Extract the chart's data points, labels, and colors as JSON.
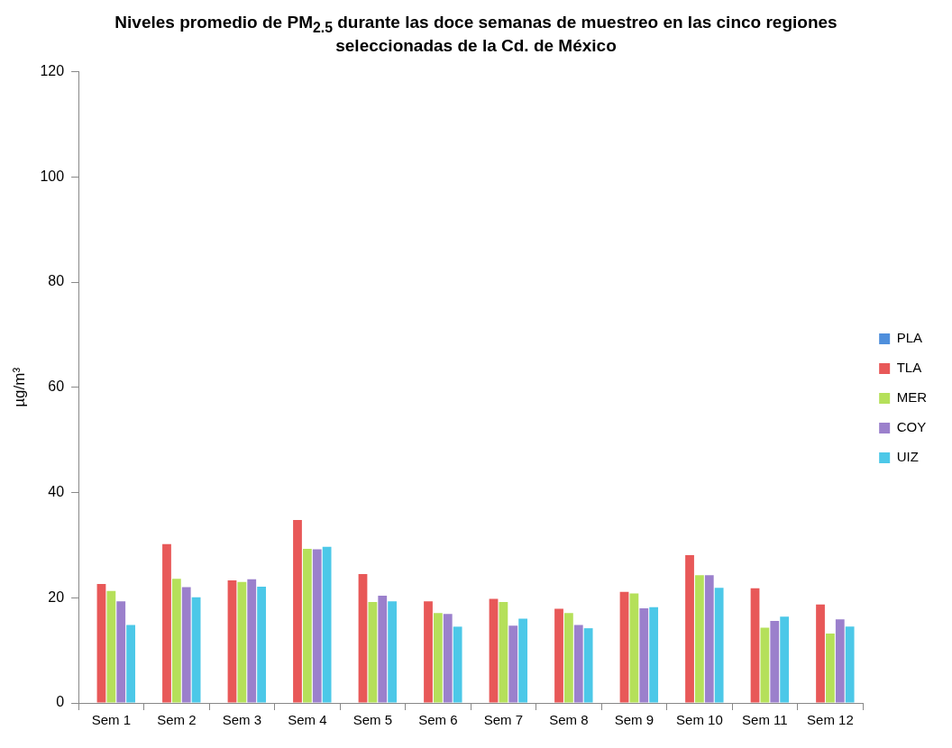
{
  "chart_data": {
    "type": "bar",
    "title": "Niveles promedio de PM$_{2.5}$ durante las doce semanas de muestreo en las cinco regiones seleccionadas de la Cd. de México",
    "ylabel": "µg/m³",
    "categories": [
      "Sem 1",
      "Sem 2",
      "Sem 3",
      "Sem 4",
      "Sem 5",
      "Sem 6",
      "Sem 7",
      "Sem 8",
      "Sem 9",
      "Sem 10",
      "Sem 11",
      "Sem 12"
    ],
    "series": [
      {
        "name": "PLA",
        "color": "#4f8fdc",
        "values": [
          null,
          null,
          null,
          null,
          null,
          null,
          null,
          null,
          null,
          null,
          null,
          null
        ]
      },
      {
        "name": "TLA",
        "color": "#e85858",
        "values": [
          22.6,
          30.2,
          23.3,
          34.8,
          24.5,
          19.3,
          19.8,
          17.9,
          21.1,
          28.1,
          21.8,
          18.7
        ]
      },
      {
        "name": "MER",
        "color": "#b5e05a",
        "values": [
          21.3,
          23.6,
          23,
          29.3,
          19.2,
          17.1,
          19.2,
          17.1,
          20.8,
          24.3,
          14.3,
          13.2
        ]
      },
      {
        "name": "COY",
        "color": "#9b80cc",
        "values": [
          19.3,
          22,
          23.5,
          29.2,
          20.4,
          16.9,
          14.7,
          14.8,
          18,
          24.3,
          15.6,
          15.9
        ]
      },
      {
        "name": "UIZ",
        "color": "#4cc8e8",
        "values": [
          14.8,
          20.1,
          22.1,
          29.7,
          19.3,
          14.5,
          16,
          14.2,
          18.2,
          21.9,
          16.4,
          14.5
        ]
      }
    ],
    "ylim": [
      0,
      120
    ],
    "yticks": [
      0,
      20,
      40,
      60,
      80,
      100,
      120
    ],
    "grid": false,
    "legend": "right"
  }
}
